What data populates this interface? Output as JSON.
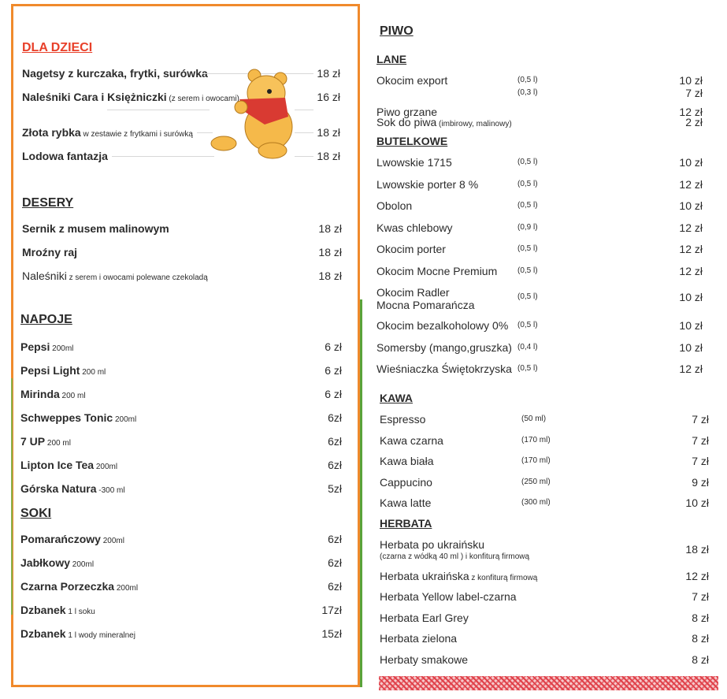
{
  "left": {
    "kids": {
      "title": "DLA DZIECI",
      "items": [
        {
          "name": "Nagetsy z kurczaka, frytki, surówka",
          "note": "",
          "price": "18 zł"
        },
        {
          "name": "Naleśniki Cara i Księżniczki",
          "note": "(z serem i owocami)",
          "price": "16 zł"
        },
        {
          "name": "Złota rybka",
          "note": "w zestawie z frytkami i surówką",
          "price": "18 zł"
        },
        {
          "name": "Lodowa fantazja",
          "note": "",
          "price": "18 zł"
        }
      ]
    },
    "desserts": {
      "title": "DESERY",
      "items": [
        {
          "name": "Sernik z musem malinowym",
          "note": "",
          "price": "18 zł"
        },
        {
          "name": "Mroźny raj",
          "note": "",
          "price": "18 zł"
        },
        {
          "name": "Naleśniki",
          "note": "z serem i owocami polewane czekoladą",
          "price": "18 zł"
        }
      ]
    },
    "drinks": {
      "title": "NAPOJE ",
      "items": [
        {
          "name": "Pepsi",
          "note": "200ml",
          "price": "6 zł"
        },
        {
          "name": "Pepsi Light",
          "note": "200 ml",
          "price": "6 zł"
        },
        {
          "name": "Mirinda",
          "note": "200 ml",
          "price": "6 zł"
        },
        {
          "name": "Schweppes Tonic",
          "note": "200ml",
          "price": "6zł"
        },
        {
          "name": "7 UP",
          "note": "200 ml",
          "price": "6zł"
        },
        {
          "name": "Lipton Ice Tea",
          "note": "200ml",
          "price": "6zł"
        },
        {
          "name": "Górska  Natura",
          "note": "-300 ml",
          "price": "5zł"
        }
      ]
    },
    "juices": {
      "title": "SOKI",
      "items": [
        {
          "name": "Pomarańczowy",
          "note": "200ml",
          "price": "6zł"
        },
        {
          "name": "Jabłkowy",
          "note": "200ml",
          "price": "6zł"
        },
        {
          "name": "Czarna Porzeczka",
          "note": "200ml",
          "price": "6zł"
        },
        {
          "name": "Dzbanek",
          "note": "1 l soku",
          "price": "17zł"
        },
        {
          "name": "Dzbanek",
          "note": "  1 l wody mineralnej",
          "price": "15zł"
        }
      ]
    }
  },
  "right": {
    "beer_title": "PIWO",
    "draft": {
      "title": "LANE",
      "items": [
        {
          "name": "Okocim export",
          "note": "",
          "vol": "(0,5 l)",
          "price": "10 zł"
        },
        {
          "name": "",
          "note": "",
          "vol": "(0,3 l)",
          "price": "7 zł"
        },
        {
          "name": "Piwo grzane",
          "note": "",
          "vol": "",
          "price": "12 zł"
        },
        {
          "name": "Sok do piwa",
          "note": "(imbirowy, malinowy)",
          "vol": "",
          "price": "2 zł"
        }
      ]
    },
    "bottled": {
      "title": "BUTELKOWE",
      "items": [
        {
          "name": "Lwowskie 1715",
          "vol": "(0,5 l)",
          "price": "10 zł"
        },
        {
          "name": "Lwowskie porter 8 %",
          "vol": "(0,5 l)",
          "price": "12 zł"
        },
        {
          "name": "Obolon",
          "vol": "(0,5 l)",
          "price": "10 zł"
        },
        {
          "name": "Kwas chlebowy",
          "vol": "(0,9 l)",
          "price": "12 zł"
        },
        {
          "name": "Okocim porter",
          "vol": "(0,5 l)",
          "price": "12 zł"
        },
        {
          "name": "Okocim Mocne Premium",
          "vol": "(0,5 l)",
          "price": "12 zł"
        },
        {
          "name": "Okocim Radler",
          "name2": "Mocna Pomarańcza",
          "vol": "(0,5 l)",
          "price": "10 zł"
        },
        {
          "name": "Okocim bezalkoholowy 0%",
          "vol": "(0,5 l)",
          "price": "10 zł"
        },
        {
          "name": "Somersby (mango,gruszka)",
          "vol": "(0,4 l)",
          "price": "10 zł"
        },
        {
          "name": "Wieśniaczka Świętokrzyska",
          "vol": "(0,5 l)",
          "price": "12 zł"
        }
      ]
    },
    "coffee": {
      "title": "KAWA",
      "items": [
        {
          "name": "Espresso",
          "vol": "(50 ml)",
          "price": "7 zł"
        },
        {
          "name": "Kawa czarna",
          "vol": "(170 ml)",
          "price": "7 zł"
        },
        {
          "name": "Kawa biała",
          "vol": "(170 ml)",
          "price": "7 zł"
        },
        {
          "name": "Cappucino",
          "vol": "(250 ml)",
          "price": "9 zł"
        },
        {
          "name": "Kawa latte",
          "vol": "(300 ml)",
          "price": "10 zł"
        }
      ]
    },
    "tea": {
      "title": "HERBATA",
      "items": [
        {
          "name": "Herbata po ukraińsku",
          "note2": "(czarna z wódką 40 ml ) i konfiturą firmową",
          "price": "18 zł"
        },
        {
          "name": "Herbata ukraińska",
          "note": "z konfiturą firmową",
          "price": "12 zł"
        },
        {
          "name": "Herbata Yellow label-czarna",
          "price": "7 zł"
        },
        {
          "name": "Herbata Earl Grey",
          "price": "8 zł"
        },
        {
          "name": "Herbata zielona",
          "price": "8 zł"
        },
        {
          "name": "Herbaty smakowe",
          "price": "8 zł"
        }
      ]
    }
  },
  "colors": {
    "frame": "#f08a2c",
    "kids_heading": "#e8402a",
    "pattern": "#e0414a"
  },
  "illustration": "bear-illustration"
}
